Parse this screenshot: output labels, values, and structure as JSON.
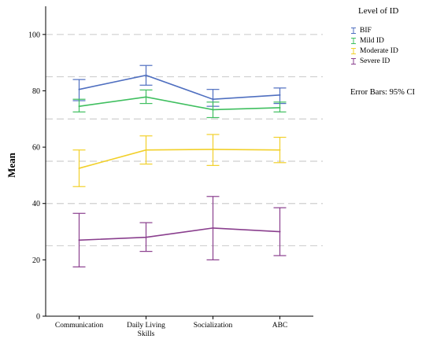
{
  "chart_data": {
    "type": "line",
    "title": "",
    "xlabel": "",
    "ylabel": "Mean",
    "ylim": [
      0,
      110
    ],
    "yticks": [
      0,
      20,
      40,
      60,
      80,
      100
    ],
    "categories": [
      "Communication",
      "Daily Living Skills",
      "Socialization",
      "ABC"
    ],
    "reference_lines": [
      100,
      85,
      70,
      55,
      40,
      25
    ],
    "error_bars": "95% CI",
    "series": [
      {
        "name": "BIF",
        "color": "#4f6fc0",
        "values": [
          80.5,
          85.5,
          77.0,
          78.5
        ],
        "ci_low": [
          76.5,
          82.0,
          74.5,
          75.5
        ],
        "ci_high": [
          84.0,
          89.0,
          80.5,
          81.0
        ]
      },
      {
        "name": "Mild ID",
        "color": "#3fbf5f",
        "values": [
          74.5,
          77.8,
          73.3,
          74.0
        ],
        "ci_low": [
          72.5,
          75.5,
          70.5,
          72.5
        ],
        "ci_high": [
          77.0,
          80.3,
          76.0,
          76.0
        ]
      },
      {
        "name": "Moderate ID",
        "color": "#f2d02a",
        "values": [
          52.5,
          59.0,
          59.2,
          59.0
        ],
        "ci_low": [
          46.0,
          54.0,
          53.5,
          54.5
        ],
        "ci_high": [
          59.0,
          64.0,
          64.5,
          63.5
        ]
      },
      {
        "name": "Severe ID",
        "color": "#8a3f8e",
        "values": [
          27.0,
          28.0,
          31.3,
          30.0
        ],
        "ci_low": [
          17.5,
          23.0,
          20.0,
          21.5
        ],
        "ci_high": [
          36.5,
          33.2,
          42.5,
          38.5
        ]
      }
    ]
  },
  "legend": {
    "title": "Level of ID",
    "items": [
      "BIF",
      "Mild ID",
      "Moderate ID",
      "Severe ID"
    ]
  },
  "note": "Error Bars: 95% CI"
}
